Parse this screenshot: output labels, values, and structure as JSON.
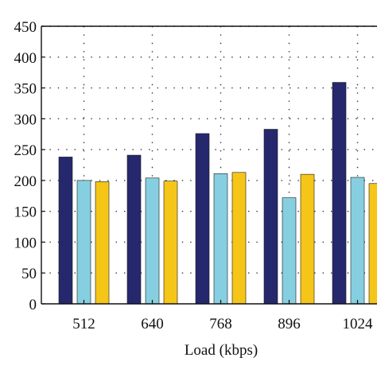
{
  "chart_data": {
    "type": "bar",
    "title": "",
    "xlabel": "Load (kbps)",
    "ylabel": "",
    "categories": [
      "512",
      "640",
      "768",
      "896",
      "1024"
    ],
    "series": [
      {
        "values": [
          238,
          241,
          276,
          283,
          359
        ],
        "color": "#26286e"
      },
      {
        "values": [
          200,
          204,
          211,
          172,
          205
        ],
        "color": "#86cfe0"
      },
      {
        "values": [
          198,
          199,
          213,
          210,
          195
        ],
        "color": "#f5c518"
      }
    ],
    "ylim": [
      0,
      450
    ],
    "yticks": [
      0,
      50,
      100,
      150,
      200,
      250,
      300,
      350,
      400,
      450
    ],
    "grid": "dotted",
    "legend": "none"
  }
}
